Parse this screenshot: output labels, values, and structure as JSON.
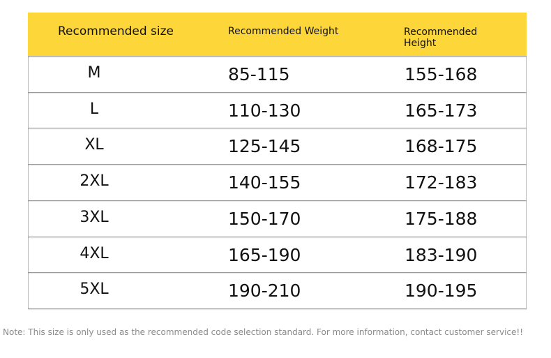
{
  "table": {
    "header": [
      "Recommended size",
      "Recommended Weight",
      "Recommended Height"
    ],
    "rows": [
      [
        "M",
        "85-115",
        "155-168"
      ],
      [
        "L",
        "110-130",
        "165-173"
      ],
      [
        "XL",
        "125-145",
        "168-175"
      ],
      [
        "2XL",
        "140-155",
        "172-183"
      ],
      [
        "3XL",
        "150-170",
        "175-188"
      ],
      [
        "4XL",
        "165-190",
        "183-190"
      ],
      [
        "5XL",
        "190-210",
        "190-195"
      ]
    ]
  },
  "note": "Note: This size is only used as the recommended code selection standard. For more information, contact customer service!!"
}
